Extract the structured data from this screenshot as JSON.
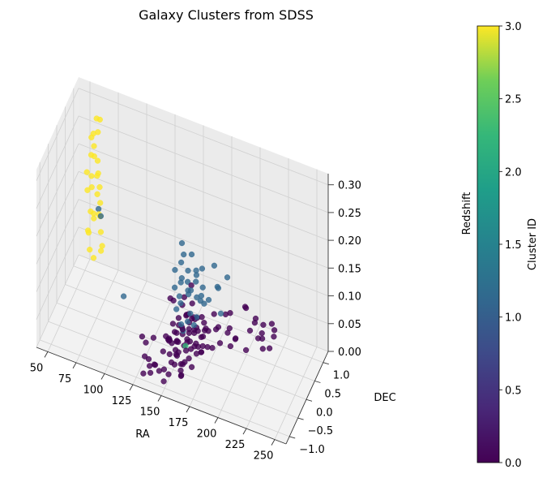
{
  "chart_data": {
    "type": "scatter",
    "title": "Galaxy Clusters from SDSS",
    "xlabel": "RA",
    "ylabel": "DEC",
    "zlabel": "Redshift",
    "x_ticks": [
      "50",
      "75",
      "100",
      "125",
      "150",
      "175",
      "200",
      "225",
      "250"
    ],
    "y_ticks": [
      "−1.0",
      "−0.5",
      "0.0",
      "0.5",
      "1.0"
    ],
    "z_ticks": [
      "0.00",
      "0.05",
      "0.10",
      "0.15",
      "0.20",
      "0.25",
      "0.30"
    ],
    "xlim": [
      40,
      260
    ],
    "ylim": [
      -1.2,
      1.3
    ],
    "zlim": [
      0,
      0.32
    ],
    "grid": true,
    "colorbar": {
      "label": "Cluster ID",
      "ticks": [
        "0.0",
        "0.5",
        "1.0",
        "1.5",
        "2.0",
        "2.5",
        "3.0"
      ],
      "range": [
        0,
        3
      ],
      "colormap": "viridis"
    },
    "colors": {
      "cluster_0": "#440154",
      "cluster_1": "#31688e",
      "cluster_2": "#35b779",
      "cluster_3": "#fde725"
    },
    "series": [
      {
        "cluster": 3,
        "points": [
          [
            55,
            1.05,
            0.24
          ],
          [
            58,
            1.0,
            0.23
          ],
          [
            60,
            1.1,
            0.25
          ],
          [
            57,
            0.9,
            0.22
          ],
          [
            62,
            0.95,
            0.21
          ],
          [
            56,
            1.15,
            0.2
          ],
          [
            54,
            0.85,
            0.19
          ],
          [
            61,
            1.05,
            0.18
          ],
          [
            59,
            0.8,
            0.17
          ],
          [
            63,
            1.0,
            0.16
          ],
          [
            53,
            0.95,
            0.15
          ],
          [
            65,
            0.9,
            0.14
          ],
          [
            58,
            1.2,
            0.13
          ],
          [
            60,
            0.85,
            0.12
          ],
          [
            55,
            1.0,
            0.11
          ],
          [
            62,
            1.1,
            0.1
          ],
          [
            57,
            0.75,
            0.09
          ],
          [
            64,
            1.0,
            0.08
          ],
          [
            52,
            1.05,
            0.07
          ],
          [
            66,
            0.95,
            0.06
          ],
          [
            59,
            0.9,
            0.26
          ],
          [
            61,
            1.15,
            0.27
          ],
          [
            56,
            0.88,
            0.05
          ],
          [
            63,
            1.08,
            0.04
          ],
          [
            58,
            0.98,
            0.03
          ],
          [
            60,
            1.02,
            0.28
          ],
          [
            54,
            1.12,
            0.165
          ],
          [
            65,
            0.82,
            0.125
          ],
          [
            57,
            1.06,
            0.095
          ],
          [
            62,
            0.92,
            0.185
          ]
        ]
      },
      {
        "cluster": 1,
        "points": [
          [
            148,
            0.15,
            0.12
          ],
          [
            152,
            0.25,
            0.13
          ],
          [
            155,
            0.05,
            0.11
          ],
          [
            160,
            0.2,
            0.14
          ],
          [
            145,
            0.3,
            0.1
          ],
          [
            150,
            -0.05,
            0.09
          ],
          [
            158,
            0.35,
            0.12
          ],
          [
            162,
            0.1,
            0.1
          ],
          [
            142,
            0.15,
            0.13
          ],
          [
            165,
            0.25,
            0.11
          ],
          [
            153,
            0.4,
            0.15
          ],
          [
            147,
            -0.1,
            0.08
          ],
          [
            157,
            0.05,
            0.07
          ],
          [
            163,
            0.3,
            0.09
          ],
          [
            149,
            0.2,
            0.16
          ],
          [
            156,
            0.45,
            0.1
          ],
          [
            144,
            0.0,
            0.11
          ],
          [
            161,
            0.15,
            0.06
          ],
          [
            151,
            0.35,
            0.08
          ],
          [
            159,
            -0.05,
            0.12
          ],
          [
            154,
            0.1,
            0.05
          ],
          [
            146,
            0.25,
            0.14
          ],
          [
            164,
            0.4,
            0.07
          ],
          [
            148,
            0.5,
            0.09
          ],
          [
            166,
            0.05,
            0.1
          ],
          [
            152,
            -0.15,
            0.06
          ],
          [
            158,
            0.2,
            0.04
          ],
          [
            143,
            0.35,
            0.07
          ],
          [
            160,
            0.55,
            0.12
          ],
          [
            150,
            0.1,
            0.03
          ],
          [
            170,
            0.6,
            0.13
          ],
          [
            175,
            0.5,
            0.1
          ],
          [
            168,
            0.4,
            0.08
          ],
          [
            172,
            0.65,
            0.09
          ],
          [
            178,
            0.45,
            0.06
          ],
          [
            140,
            0.7,
            0.14
          ],
          [
            180,
            0.7,
            0.11
          ],
          [
            62,
            1.0,
            0.12
          ],
          [
            70,
            0.6,
            0.14
          ],
          [
            105,
            -0.4,
            0.09
          ]
        ]
      },
      {
        "cluster": 2,
        "points": [
          [
            155,
            -0.1,
            0.02
          ]
        ]
      },
      {
        "cluster": 0,
        "points": [
          [
            140,
            0.1,
            0.0
          ],
          [
            145,
            0.05,
            0.01
          ],
          [
            150,
            0.15,
            0.0
          ],
          [
            155,
            0.0,
            0.02
          ],
          [
            160,
            0.1,
            0.01
          ],
          [
            148,
            -0.05,
            0.0
          ],
          [
            152,
            0.2,
            0.01
          ],
          [
            158,
            -0.1,
            0.0
          ],
          [
            162,
            0.05,
            0.02
          ],
          [
            142,
            0.25,
            0.01
          ],
          [
            165,
            0.15,
            0.0
          ],
          [
            147,
            -0.15,
            0.01
          ],
          [
            153,
            0.3,
            0.0
          ],
          [
            157,
            -0.2,
            0.02
          ],
          [
            144,
            0.0,
            0.03
          ],
          [
            161,
            0.25,
            0.0
          ],
          [
            149,
            -0.25,
            0.01
          ],
          [
            156,
            0.35,
            0.02
          ],
          [
            143,
            0.2,
            0.0
          ],
          [
            164,
            -0.05,
            0.01
          ],
          [
            151,
            0.0,
            0.04
          ],
          [
            159,
            0.15,
            0.03
          ],
          [
            146,
            0.3,
            0.02
          ],
          [
            154,
            -0.3,
            0.0
          ],
          [
            163,
            0.4,
            0.01
          ],
          [
            141,
            -0.1,
            0.02
          ],
          [
            166,
            0.3,
            0.03
          ],
          [
            150,
            0.45,
            0.01
          ],
          [
            158,
            -0.35,
            0.01
          ],
          [
            145,
            0.4,
            0.0
          ],
          [
            168,
            0.05,
            0.02
          ],
          [
            139,
            0.0,
            0.01
          ],
          [
            152,
            -0.4,
            0.02
          ],
          [
            160,
            0.5,
            0.0
          ],
          [
            147,
            0.5,
            0.03
          ],
          [
            155,
            0.55,
            0.01
          ],
          [
            170,
            0.2,
            0.01
          ],
          [
            138,
            0.3,
            0.02
          ],
          [
            162,
            -0.25,
            0.03
          ],
          [
            149,
            0.35,
            0.04
          ],
          [
            156,
            -0.45,
            0.0
          ],
          [
            144,
            -0.3,
            0.01
          ],
          [
            167,
            0.45,
            0.02
          ],
          [
            153,
            0.6,
            0.02
          ],
          [
            141,
            0.45,
            0.01
          ],
          [
            159,
            -0.15,
            0.05
          ],
          [
            146,
            0.1,
            0.05
          ],
          [
            163,
            0.1,
            0.04
          ],
          [
            150,
            -0.2,
            0.03
          ],
          [
            157,
            0.25,
            0.05
          ],
          [
            172,
            0.35,
            0.0
          ],
          [
            136,
            0.15,
            0.0
          ],
          [
            165,
            -0.4,
            0.01
          ],
          [
            148,
            0.6,
            0.01
          ],
          [
            161,
            0.6,
            0.02
          ],
          [
            142,
            -0.2,
            0.03
          ],
          [
            154,
            0.15,
            0.06
          ],
          [
            169,
            -0.1,
            0.02
          ],
          [
            137,
            -0.05,
            0.02
          ],
          [
            158,
            0.4,
            0.04
          ],
          [
            175,
            0.5,
            0.03
          ],
          [
            180,
            0.6,
            0.05
          ],
          [
            178,
            0.4,
            0.01
          ],
          [
            182,
            0.7,
            0.02
          ],
          [
            185,
            0.55,
            0.0
          ],
          [
            176,
            0.3,
            0.04
          ],
          [
            184,
            0.45,
            0.03
          ],
          [
            188,
            0.65,
            0.01
          ],
          [
            181,
            0.8,
            0.04
          ],
          [
            190,
            0.5,
            0.02
          ],
          [
            200,
            0.7,
            0.03
          ],
          [
            205,
            0.85,
            0.01
          ],
          [
            198,
            0.6,
            0.0
          ],
          [
            210,
            0.75,
            0.02
          ],
          [
            202,
            0.9,
            0.04
          ],
          [
            195,
            0.8,
            0.06
          ],
          [
            208,
            0.95,
            0.03
          ],
          [
            212,
            0.65,
            0.01
          ],
          [
            215,
            0.85,
            0.0
          ],
          [
            192,
            0.95,
            0.05
          ],
          [
            218,
            0.9,
            0.02
          ],
          [
            206,
            1.0,
            0.01
          ],
          [
            214,
            1.05,
            0.03
          ],
          [
            220,
            0.8,
            0.04
          ],
          [
            199,
            1.05,
            0.02
          ],
          [
            130,
            -0.6,
            0.01
          ],
          [
            135,
            -0.55,
            0.0
          ],
          [
            128,
            -0.7,
            0.02
          ],
          [
            133,
            -0.75,
            0.01
          ],
          [
            140,
            -0.65,
            0.0
          ],
          [
            126,
            -0.5,
            0.03
          ],
          [
            138,
            -0.8,
            0.02
          ],
          [
            132,
            -0.45,
            0.04
          ],
          [
            145,
            -0.7,
            0.01
          ],
          [
            129,
            -0.85,
            0.0
          ],
          [
            142,
            -0.55,
            0.03
          ],
          [
            136,
            -0.9,
            0.01
          ],
          [
            150,
            -0.6,
            0.02
          ],
          [
            125,
            -0.65,
            0.05
          ],
          [
            147,
            -0.85,
            0.0
          ],
          [
            155,
            -0.75,
            0.03
          ],
          [
            160,
            -0.7,
            0.01
          ],
          [
            152,
            -0.9,
            0.02
          ],
          [
            158,
            -0.55,
            0.0
          ],
          [
            163,
            -0.8,
            0.04
          ],
          [
            140,
            0.2,
            0.07
          ],
          [
            155,
            0.3,
            0.07
          ],
          [
            165,
            0.2,
            0.06
          ],
          [
            150,
            0.05,
            0.08
          ],
          [
            160,
            -0.05,
            0.07
          ],
          [
            145,
            0.5,
            0.06
          ],
          [
            170,
            0.1,
            0.05
          ],
          [
            135,
            0.35,
            0.06
          ],
          [
            175,
            0.25,
            0.07
          ],
          [
            152,
            0.45,
            0.09
          ]
        ]
      }
    ]
  }
}
